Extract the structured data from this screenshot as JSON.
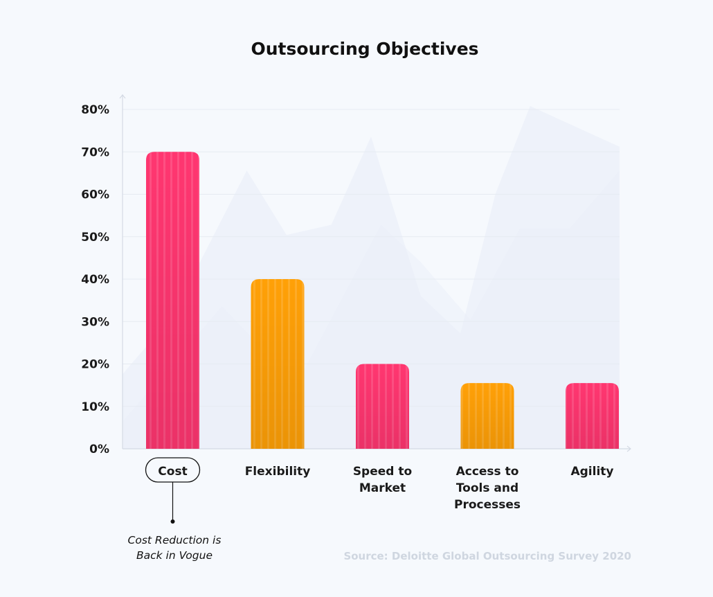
{
  "chart_data": {
    "type": "bar",
    "title": "Outsourcing Objectives",
    "categories": [
      [
        "Cost"
      ],
      [
        "Flexibility"
      ],
      [
        "Speed to",
        "Market"
      ],
      [
        "Access to",
        "Tools and",
        "Processes"
      ],
      [
        "Agility"
      ]
    ],
    "values": [
      70,
      40,
      20,
      15.5,
      15.5
    ],
    "bar_colors": [
      "#ff3670",
      "#ffa007",
      "#ff3670",
      "#ffa007",
      "#ff3670"
    ],
    "ylim": [
      0,
      80
    ],
    "yticks": [
      0,
      10,
      20,
      30,
      40,
      50,
      60,
      70,
      80
    ],
    "ytick_labels": [
      "0%",
      "10%",
      "20%",
      "30%",
      "40%",
      "50%",
      "60%",
      "70%",
      "80%"
    ],
    "xlabel": "",
    "ylabel": "",
    "grid": true,
    "highlighted_category": 0,
    "annotation": {
      "category_index": 0,
      "lines": [
        "Cost Reduction is",
        "Back in Vogue"
      ]
    },
    "source": "Source: Deloitte Global Outsourcing Survey 2020"
  },
  "colors": {
    "background": "#f6f9fd",
    "grid": "#e6ebf2",
    "axis": "#d4dae4",
    "text": "#1a1a1a",
    "source_text": "#cfd6e0",
    "watermark": "#e8edf8"
  }
}
